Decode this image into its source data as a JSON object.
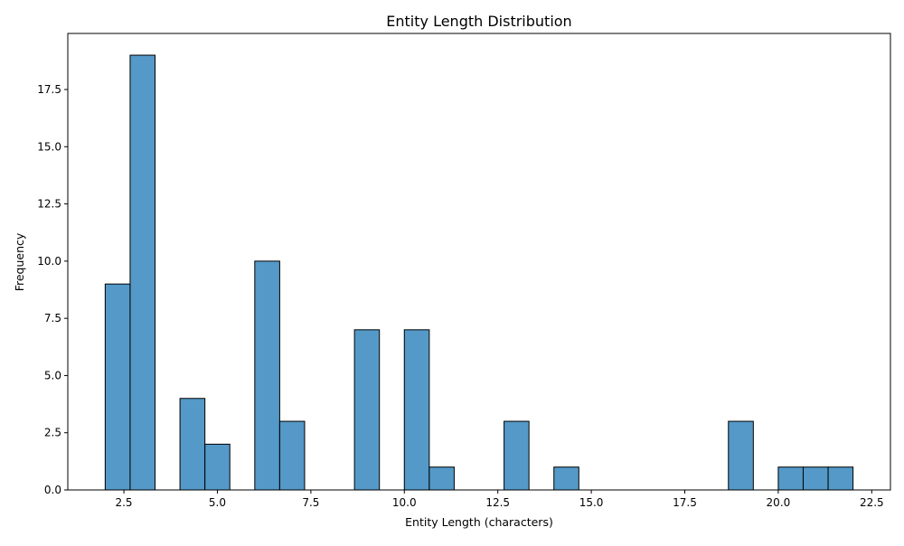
{
  "chart_data": {
    "type": "bar",
    "subtype": "histogram",
    "title": "Entity Length Distribution",
    "xlabel": "Entity Length (characters)",
    "ylabel": "Frequency",
    "xlim": [
      1.0,
      23.0
    ],
    "ylim": [
      0,
      19.95
    ],
    "x_ticks": [
      2.5,
      5.0,
      7.5,
      10.0,
      12.5,
      15.0,
      17.5,
      20.0,
      22.5
    ],
    "x_tick_labels": [
      "2.5",
      "5.0",
      "7.5",
      "10.0",
      "12.5",
      "15.0",
      "17.5",
      "20.0",
      "22.5"
    ],
    "y_ticks": [
      0,
      2.5,
      5,
      7.5,
      10,
      12.5,
      15,
      17.5
    ],
    "y_tick_labels": [
      "0.0",
      "2.5",
      "5.0",
      "7.5",
      "10.0",
      "12.5",
      "15.0",
      "17.5"
    ],
    "grid": false,
    "bar_color": "#5499c7",
    "edge_color": "#000000",
    "bin_start": 2.0,
    "bin_width": 0.6667,
    "bins": [
      {
        "x0": 2.0,
        "x1": 2.6667,
        "count": 9
      },
      {
        "x0": 2.6667,
        "x1": 3.3333,
        "count": 19
      },
      {
        "x0": 3.3333,
        "x1": 4.0,
        "count": 0
      },
      {
        "x0": 4.0,
        "x1": 4.6667,
        "count": 4
      },
      {
        "x0": 4.6667,
        "x1": 5.3333,
        "count": 2
      },
      {
        "x0": 5.3333,
        "x1": 6.0,
        "count": 0
      },
      {
        "x0": 6.0,
        "x1": 6.6667,
        "count": 10
      },
      {
        "x0": 6.6667,
        "x1": 7.3333,
        "count": 3
      },
      {
        "x0": 7.3333,
        "x1": 8.0,
        "count": 0
      },
      {
        "x0": 8.0,
        "x1": 8.6667,
        "count": 0
      },
      {
        "x0": 8.6667,
        "x1": 9.3333,
        "count": 7
      },
      {
        "x0": 9.3333,
        "x1": 10.0,
        "count": 0
      },
      {
        "x0": 10.0,
        "x1": 10.6667,
        "count": 7
      },
      {
        "x0": 10.6667,
        "x1": 11.3333,
        "count": 1
      },
      {
        "x0": 11.3333,
        "x1": 12.0,
        "count": 0
      },
      {
        "x0": 12.0,
        "x1": 12.6667,
        "count": 0
      },
      {
        "x0": 12.6667,
        "x1": 13.3333,
        "count": 3
      },
      {
        "x0": 13.3333,
        "x1": 14.0,
        "count": 0
      },
      {
        "x0": 14.0,
        "x1": 14.6667,
        "count": 1
      },
      {
        "x0": 14.6667,
        "x1": 15.3333,
        "count": 0
      },
      {
        "x0": 15.3333,
        "x1": 16.0,
        "count": 0
      },
      {
        "x0": 16.0,
        "x1": 16.6667,
        "count": 0
      },
      {
        "x0": 16.6667,
        "x1": 17.3333,
        "count": 0
      },
      {
        "x0": 17.3333,
        "x1": 18.0,
        "count": 0
      },
      {
        "x0": 18.0,
        "x1": 18.6667,
        "count": 0
      },
      {
        "x0": 18.6667,
        "x1": 19.3333,
        "count": 3
      },
      {
        "x0": 19.3333,
        "x1": 20.0,
        "count": 0
      },
      {
        "x0": 20.0,
        "x1": 20.6667,
        "count": 1
      },
      {
        "x0": 20.6667,
        "x1": 21.3333,
        "count": 1
      },
      {
        "x0": 21.3333,
        "x1": 22.0,
        "count": 1
      }
    ]
  }
}
